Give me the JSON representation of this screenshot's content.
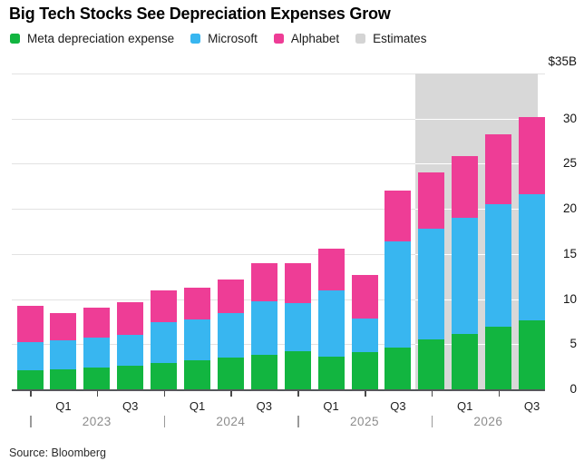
{
  "title": "Big Tech Stocks See Depreciation Expenses Grow",
  "source": "Source: Bloomberg",
  "colors": {
    "meta": "#12b540",
    "microsoft": "#38b6f0",
    "alphabet": "#ee3d96",
    "estimates_band": "#d8d8d8",
    "estimates_swatch": "#d4d4d4",
    "gridline": "#e2e2e2",
    "band_gridline": "#ffffff",
    "axis_line": "#55575b"
  },
  "legend": [
    {
      "label": "Meta depreciation expense",
      "color_key": "meta"
    },
    {
      "label": "Microsoft",
      "color_key": "microsoft"
    },
    {
      "label": "Alphabet",
      "color_key": "alphabet"
    },
    {
      "label": "Estimates",
      "color_key": "estimates_swatch"
    }
  ],
  "chart_data": {
    "type": "bar",
    "stacked": true,
    "title": "Big Tech Stocks See Depreciation Expenses Grow",
    "unit": "billions of US dollars",
    "categories": [
      "Q4 2022",
      "Q1 2023",
      "Q2 2023",
      "Q3 2023",
      "Q4 2023",
      "Q1 2024",
      "Q2 2024",
      "Q3 2024",
      "Q4 2024",
      "Q1 2025",
      "Q2 2025",
      "Q3 2025",
      "Q4 2025",
      "Q1 2026",
      "Q2 2026",
      "Q3 2026"
    ],
    "series": [
      {
        "name": "Meta depreciation expense",
        "color_key": "meta",
        "values": [
          2.15,
          2.25,
          2.4,
          2.6,
          2.9,
          3.25,
          3.5,
          3.85,
          4.25,
          3.65,
          4.1,
          4.65,
          5.5,
          6.1,
          6.9,
          7.6
        ]
      },
      {
        "name": "Microsoft",
        "color_key": "microsoft",
        "values": [
          3.05,
          3.15,
          3.3,
          3.4,
          4.55,
          4.45,
          4.95,
          5.95,
          5.35,
          7.35,
          3.7,
          11.7,
          12.35,
          12.9,
          13.6,
          14.0
        ]
      },
      {
        "name": "Alphabet",
        "color_key": "alphabet",
        "values": [
          4.1,
          3.0,
          3.35,
          3.7,
          3.55,
          3.6,
          3.75,
          4.2,
          4.4,
          4.6,
          4.9,
          5.7,
          6.2,
          6.8,
          7.8,
          8.6
        ]
      }
    ],
    "estimates_start_index": 12,
    "estimate_categories": [
      "Q4 2025",
      "Q1 2026",
      "Q2 2026",
      "Q3 2026"
    ],
    "y_axis": {
      "top_label": "$35B",
      "ticks": [
        0,
        5,
        10,
        15,
        20,
        25,
        30
      ],
      "gridlines": [
        5,
        10,
        15,
        20,
        25,
        30,
        35
      ],
      "min": 0,
      "max": 35,
      "side": "right",
      "grid": "on"
    },
    "x_axis": {
      "quarter_tick_labels": [
        "Q1",
        "Q3",
        "Q1",
        "Q3",
        "Q1",
        "Q3",
        "Q1",
        "Q3"
      ],
      "years": [
        "2023",
        "2024",
        "2025",
        "2026"
      ]
    },
    "legend_position": "top"
  }
}
